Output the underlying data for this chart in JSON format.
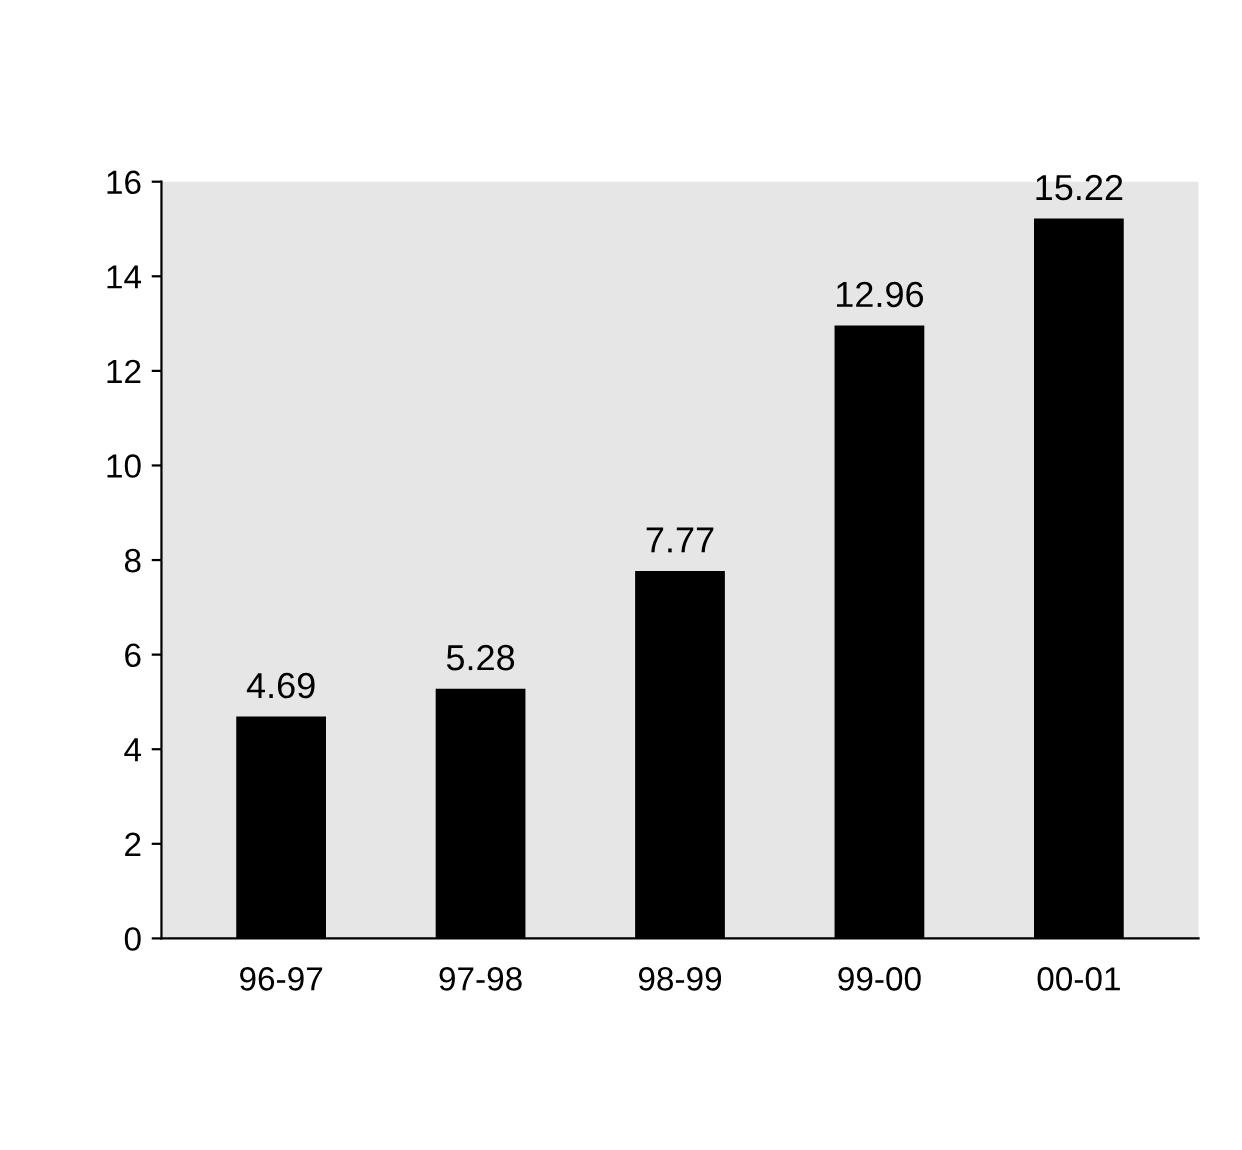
{
  "chart_data": {
    "type": "bar",
    "categories": [
      "96-97",
      "97-98",
      "98-99",
      "99-00",
      "00-01"
    ],
    "values": [
      4.69,
      5.28,
      7.77,
      12.96,
      15.22
    ],
    "color": "#000000",
    "ylim": [
      0,
      16
    ],
    "yticks": [
      0,
      2,
      4,
      6,
      8,
      10,
      12,
      14,
      16
    ],
    "data_labels": true,
    "grid": false
  }
}
